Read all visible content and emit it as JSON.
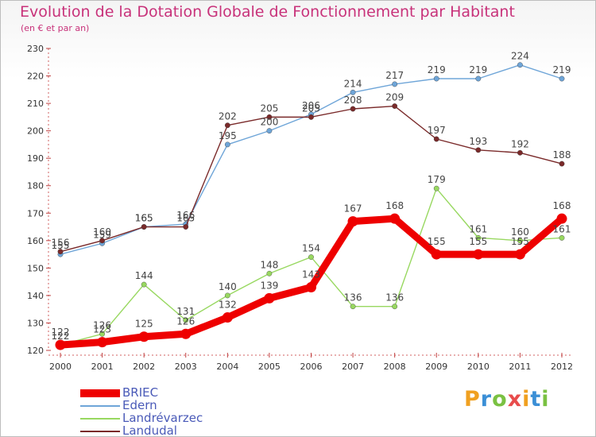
{
  "title": "Evolution de la Dotation Globale de Fonctionnement par Habitant",
  "subtitle": "(en € et par an)",
  "brand": "Proxiti",
  "chart_data": {
    "type": "line",
    "categories": [
      "2000",
      "2001",
      "2002",
      "2003",
      "2004",
      "2005",
      "2006",
      "2007",
      "2008",
      "2009",
      "2010",
      "2011",
      "2012"
    ],
    "ylim": [
      120,
      230
    ],
    "yticks": [
      120,
      130,
      140,
      150,
      160,
      170,
      180,
      190,
      200,
      210,
      220,
      230
    ],
    "grid": false,
    "legend_position": "bottom-left",
    "series": [
      {
        "name": "BRIEC",
        "color": "#ee0000",
        "values": [
          122,
          123,
          125,
          126,
          132,
          139,
          143,
          167,
          168,
          155,
          155,
          155,
          168
        ]
      },
      {
        "name": "Edern",
        "color": "#6ea5d8",
        "values": [
          155,
          159,
          165,
          166,
          195,
          200,
          206,
          214,
          217,
          219,
          219,
          224,
          219
        ]
      },
      {
        "name": "Landrévarzec",
        "color": "#98d860",
        "values": [
          122,
          126,
          144,
          131,
          140,
          148,
          154,
          136,
          136,
          179,
          161,
          160,
          161
        ]
      },
      {
        "name": "Landudal",
        "color": "#7a2a2a",
        "values": [
          156,
          160,
          165,
          165,
          202,
          205,
          205,
          208,
          209,
          197,
          193,
          192,
          188
        ]
      }
    ]
  }
}
